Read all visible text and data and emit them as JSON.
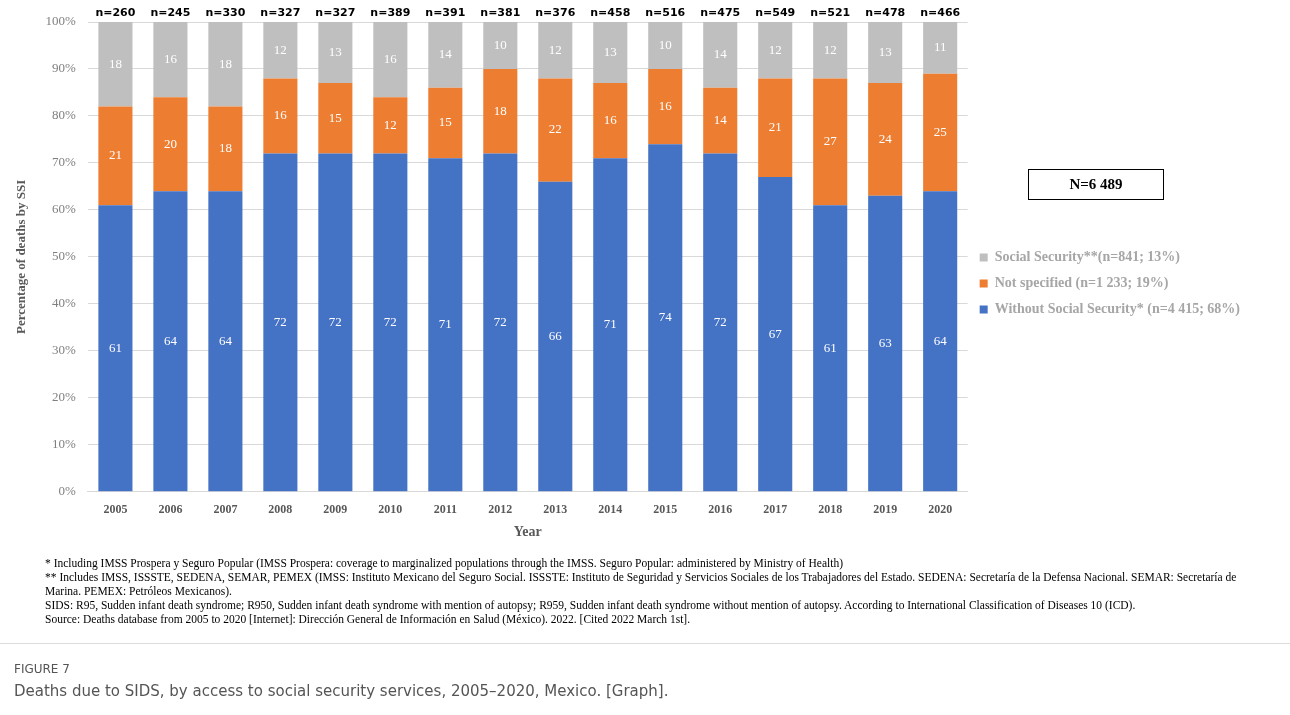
{
  "chart_data": {
    "type": "bar",
    "stacked": true,
    "title": "FIGURE 7",
    "subtitle": "Deaths due to SIDS, by access to social security services, 2005–2020, Mexico. [Graph].",
    "xlabel": "Year",
    "ylabel": "Percentage of deaths by SSI",
    "categories": [
      "2005",
      "2006",
      "2007",
      "2008",
      "2009",
      "2010",
      "2011",
      "2012",
      "2013",
      "2014",
      "2015",
      "2016",
      "2017",
      "2018",
      "2019",
      "2020"
    ],
    "series": [
      {
        "name": "Without Social Security* (n=4 415; 68%)",
        "color": "#4472c4",
        "values": [
          61,
          64,
          64,
          72,
          72,
          72,
          71,
          72,
          66,
          71,
          74,
          72,
          67,
          61,
          63,
          64
        ]
      },
      {
        "name": "Not specified (n=1 233; 19%)",
        "color": "#ed7d31",
        "values": [
          21,
          20,
          18,
          16,
          15,
          12,
          15,
          18,
          22,
          16,
          16,
          14,
          21,
          27,
          24,
          25
        ]
      },
      {
        "name": "Social Security**(n=841; 13%)",
        "color": "#bfbfbf",
        "values": [
          18,
          16,
          18,
          12,
          13,
          16,
          14,
          10,
          12,
          13,
          10,
          14,
          12,
          12,
          13,
          11
        ]
      }
    ],
    "ylim": [
      0,
      100
    ],
    "yticks": [
      {
        "value": 0,
        "label": "0%"
      },
      {
        "value": 10,
        "label": "10%"
      },
      {
        "value": 20,
        "label": "20%"
      },
      {
        "value": 30,
        "label": "30%"
      },
      {
        "value": 40,
        "label": "40%"
      },
      {
        "value": 50,
        "label": "50%"
      },
      {
        "value": 60,
        "label": "60%"
      },
      {
        "value": 70,
        "label": "70%"
      },
      {
        "value": 80,
        "label": "80%"
      },
      {
        "value": 90,
        "label": "90%"
      },
      {
        "value": 100,
        "label": "100%"
      }
    ],
    "grid": "y",
    "legend": "right",
    "data_labels": true,
    "annotations": [
      "N=6 489",
      {
        "text": "n=260",
        "x": "2005",
        "y": 100
      },
      {
        "text": "n=245",
        "x": "2006",
        "y": 100
      },
      {
        "text": "n=330",
        "x": "2007",
        "y": 100
      },
      {
        "text": "n=327",
        "x": "2008",
        "y": 100
      },
      {
        "text": "n=327",
        "x": "2009",
        "y": 100
      },
      {
        "text": "n=389",
        "x": "2010",
        "y": 100
      },
      {
        "text": "n=391",
        "x": "2011",
        "y": 100
      },
      {
        "text": "n=381",
        "x": "2012",
        "y": 100
      },
      {
        "text": "n=376",
        "x": "2013",
        "y": 100
      },
      {
        "text": "n=458",
        "x": "2014",
        "y": 100
      },
      {
        "text": "n=516",
        "x": "2015",
        "y": 100
      },
      {
        "text": "n=475",
        "x": "2016",
        "y": 100
      },
      {
        "text": "n=549",
        "x": "2017",
        "y": 100
      },
      {
        "text": "n=521",
        "x": "2018",
        "y": 100
      },
      {
        "text": "n=478",
        "x": "2019",
        "y": 100
      },
      {
        "text": "n=466",
        "x": "2020",
        "y": 100
      },
      "* Including IMSS Prospera y Seguro Popular (IMSS Prospera: coverage to marginalized populations through the IMSS. Seguro Popular: administered by Ministry of Health)",
      "** Includes IMSS, ISSSTE, SEDENA, SEMAR, PEMEX (IMSS: Instituto Mexicano del Seguro Social. ISSSTE: Instituto de  Seguridad y Servicios Sociales de los Trabajadores del Estado. SEDENA: Secretaría de  la Defensa Nacional. SEMAR: Secretaría de Marina. PEMEX: Petróleos Mexicanos).",
      "SIDS: R95, Sudden infant death syndrome; R950, Sudden infant death syndrome with mention of autopsy; R959, Sudden infant death syndrome without mention of autopsy. According  to International Classification of Diseases 10 (ICD).",
      "Source: Deaths database from 2005 to 2020 [Internet]: Dirección General de Información en Salud (México). 2022. [Cited 2022 March 1st]."
    ]
  }
}
